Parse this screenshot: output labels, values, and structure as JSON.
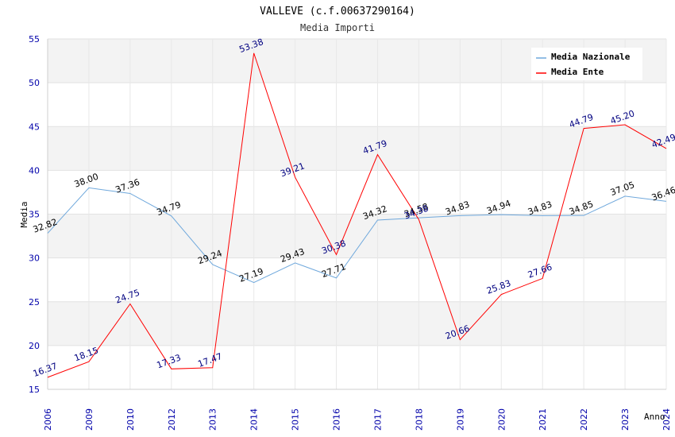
{
  "chart_data": {
    "type": "line",
    "title": "VALLEVE (c.f.00637290164)",
    "subtitle": "Media Importi",
    "xlabel": "Anno",
    "ylabel": "Media",
    "ylim": [
      15,
      55
    ],
    "yticks": [
      "15",
      "20",
      "25",
      "30",
      "35",
      "40",
      "45",
      "50",
      "55"
    ],
    "grid": true,
    "legend_position": "top-right",
    "categories": [
      "2006",
      "2009",
      "2010",
      "2012",
      "2013",
      "2014",
      "2015",
      "2016",
      "2017",
      "2018",
      "2019",
      "2020",
      "2021",
      "2022",
      "2023",
      "2024"
    ],
    "series": [
      {
        "name": "Media Nazionale",
        "color": "#6fa8dc",
        "values": [
          32.82,
          38.0,
          37.36,
          34.79,
          29.24,
          27.19,
          29.43,
          27.71,
          34.32,
          34.58,
          34.83,
          34.94,
          34.83,
          34.85,
          37.05,
          36.46
        ],
        "labels": [
          "32.82",
          "38.00",
          "37.36",
          "34.79",
          "29.24",
          "27.19",
          "29.43",
          "27.71",
          "34.32",
          "34.58",
          "34.83",
          "34.94",
          "34.83",
          "34.85",
          "37.05",
          "36.46"
        ]
      },
      {
        "name": "Media Ente",
        "color": "#ff0000",
        "values": [
          16.37,
          18.15,
          24.75,
          17.33,
          17.47,
          53.38,
          39.21,
          30.38,
          41.79,
          34.38,
          20.66,
          25.83,
          27.66,
          44.79,
          45.2,
          42.49
        ],
        "labels": [
          "16.37",
          "18.15",
          "24.75",
          "17.33",
          "17.47",
          "53.38",
          "39.21",
          "30.38",
          "41.79",
          "34.38",
          "20.66",
          "25.83",
          "27.66",
          "44.79",
          "45.20",
          "42.49"
        ]
      }
    ]
  }
}
